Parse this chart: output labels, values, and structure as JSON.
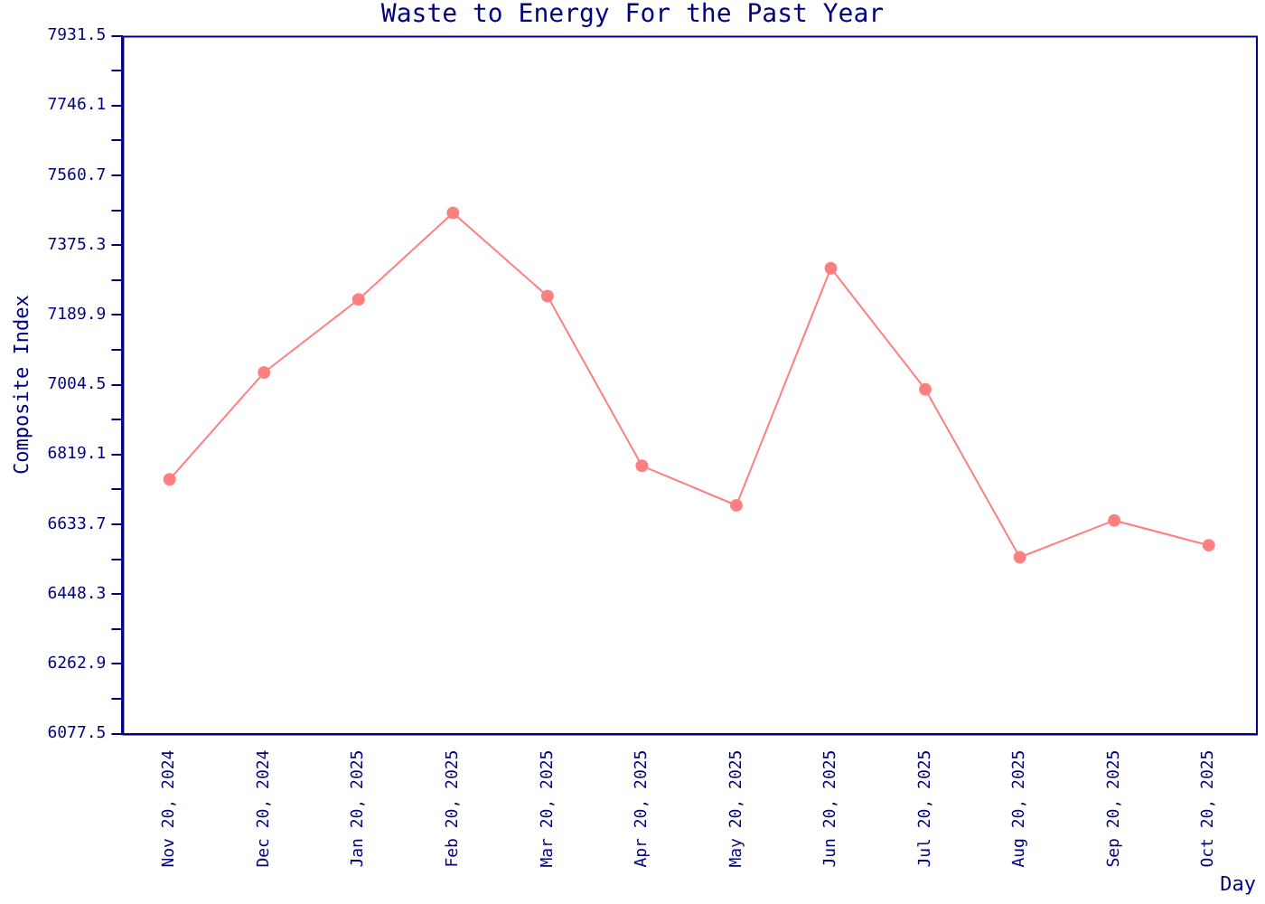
{
  "chart_data": {
    "type": "line",
    "title": "Waste to Energy For the Past Year",
    "xlabel": "Day",
    "ylabel": "Composite Index",
    "categories": [
      "Nov 20, 2024",
      "Dec 20, 2024",
      "Jan 20, 2025",
      "Feb 20, 2025",
      "Mar 20, 2025",
      "Apr 20, 2025",
      "May 20, 2025",
      "Jun 20, 2025",
      "Jul 20, 2025",
      "Aug 20, 2025",
      "Sep 20, 2025",
      "Oct 20, 2025"
    ],
    "series": [
      {
        "color": "#ff7f7f",
        "values": [
          6753,
          7037,
          7231,
          7461,
          7240,
          6789,
          6684,
          7314,
          6992,
          6546,
          6644,
          6578
        ]
      }
    ],
    "ylim": [
      6077.5,
      7931.5
    ],
    "yticks": [
      6077.5,
      {
        "value": 6170.2,
        "label": null
      },
      6262.9,
      {
        "value": 6355.6,
        "label": null
      },
      6448.3,
      {
        "value": 6541,
        "label": null
      },
      6633.7,
      {
        "value": 6726.4,
        "label": null
      },
      6819.1,
      {
        "value": 6911.8,
        "label": null
      },
      7004.5,
      {
        "value": 7097.2,
        "label": null
      },
      7189.9,
      {
        "value": 7282.6,
        "label": null
      },
      7375.3,
      {
        "value": 7468,
        "label": null
      },
      7560.7,
      {
        "value": 7653.4,
        "label": null
      },
      7746.1,
      {
        "value": 7838.8,
        "label": null
      },
      7931.5
    ],
    "grid": false,
    "legend": false,
    "marker": "circle",
    "line_style": "solid"
  }
}
